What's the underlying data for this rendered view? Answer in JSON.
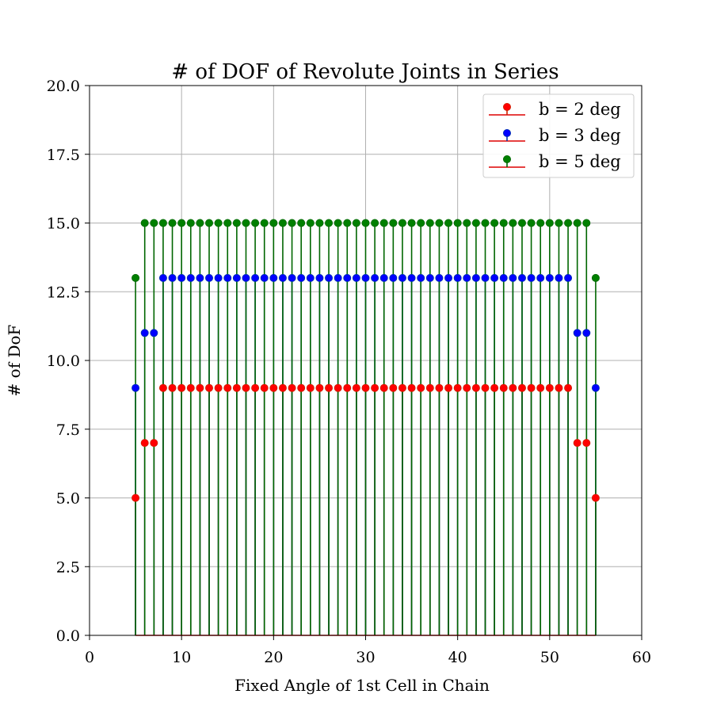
{
  "chart_data": {
    "type": "stem",
    "title": "# of DOF of Revolute Joints in Series",
    "xlabel": "Fixed Angle of 1st Cell in Chain",
    "ylabel": "# of DoF",
    "xlim": [
      0,
      60
    ],
    "ylim": [
      0,
      20
    ],
    "xticks": [
      "0",
      "10",
      "20",
      "30",
      "40",
      "50",
      "60"
    ],
    "yticks": [
      "0.0",
      "2.5",
      "5.0",
      "7.5",
      "10.0",
      "12.5",
      "15.0",
      "17.5",
      "20.0"
    ],
    "grid": true,
    "legend_position": "top-right",
    "x": [
      5,
      6,
      7,
      8,
      9,
      10,
      11,
      12,
      13,
      14,
      15,
      16,
      17,
      18,
      19,
      20,
      21,
      22,
      23,
      24,
      25,
      26,
      27,
      28,
      29,
      30,
      31,
      32,
      33,
      34,
      35,
      36,
      37,
      38,
      39,
      40,
      41,
      42,
      43,
      44,
      45,
      46,
      47,
      48,
      49,
      50,
      51,
      52,
      53,
      54,
      55
    ],
    "series": [
      {
        "name": "b = 2 deg",
        "marker_color": "#ff0000",
        "stem_color": "#cc2200",
        "values": [
          5,
          7,
          7,
          9,
          9,
          9,
          9,
          9,
          9,
          9,
          9,
          9,
          9,
          9,
          9,
          9,
          9,
          9,
          9,
          9,
          9,
          9,
          9,
          9,
          9,
          9,
          9,
          9,
          9,
          9,
          9,
          9,
          9,
          9,
          9,
          9,
          9,
          9,
          9,
          9,
          9,
          9,
          9,
          9,
          9,
          9,
          9,
          9,
          7,
          7,
          5
        ]
      },
      {
        "name": "b = 3 deg",
        "marker_color": "#0000ff",
        "stem_color": "#0033aa",
        "values": [
          9,
          11,
          11,
          13,
          13,
          13,
          13,
          13,
          13,
          13,
          13,
          13,
          13,
          13,
          13,
          13,
          13,
          13,
          13,
          13,
          13,
          13,
          13,
          13,
          13,
          13,
          13,
          13,
          13,
          13,
          13,
          13,
          13,
          13,
          13,
          13,
          13,
          13,
          13,
          13,
          13,
          13,
          13,
          13,
          13,
          13,
          13,
          13,
          11,
          11,
          9
        ]
      },
      {
        "name": "b = 5 deg",
        "marker_color": "#008000",
        "stem_color": "#006600",
        "values": [
          13,
          15,
          15,
          15,
          15,
          15,
          15,
          15,
          15,
          15,
          15,
          15,
          15,
          15,
          15,
          15,
          15,
          15,
          15,
          15,
          15,
          15,
          15,
          15,
          15,
          15,
          15,
          15,
          15,
          15,
          15,
          15,
          15,
          15,
          15,
          15,
          15,
          15,
          15,
          15,
          15,
          15,
          15,
          15,
          15,
          15,
          15,
          15,
          15,
          15,
          13
        ]
      }
    ],
    "baseline_color": "#dd0000"
  }
}
